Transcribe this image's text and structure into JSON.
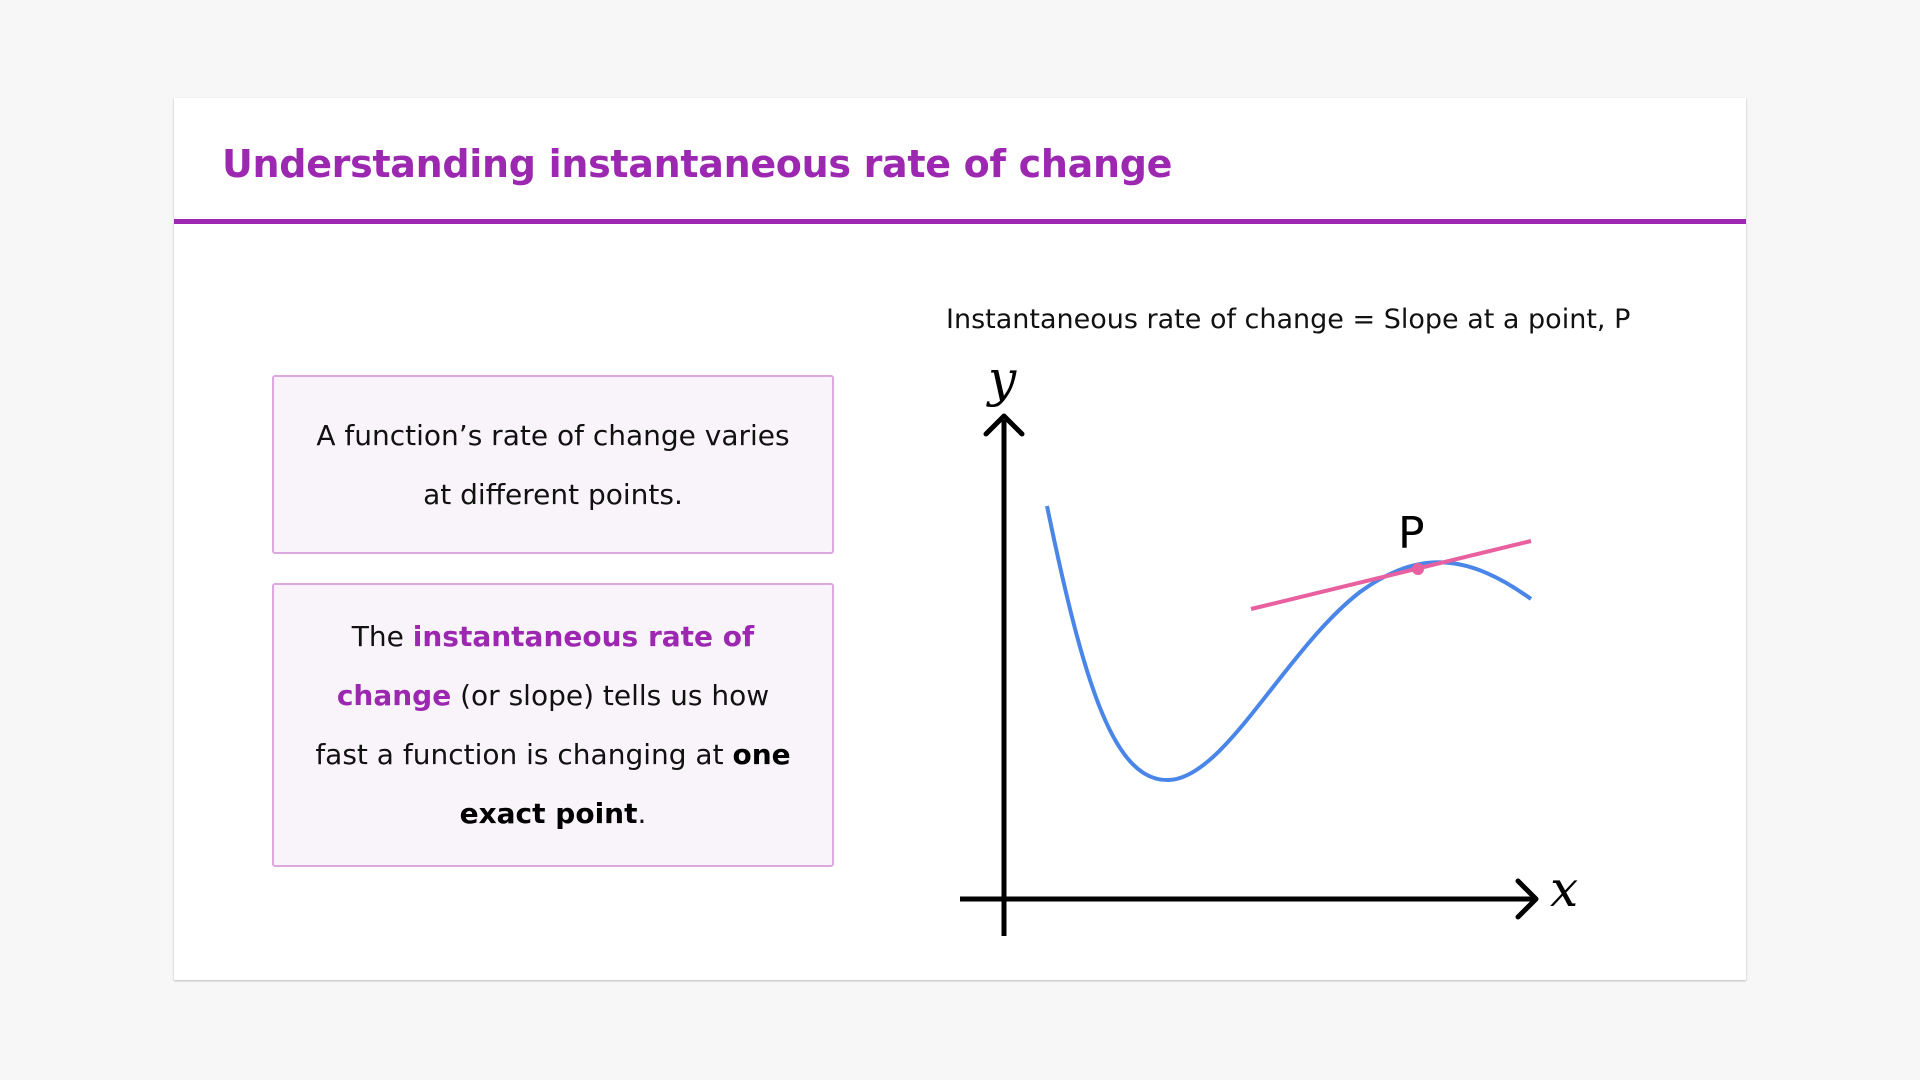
{
  "slide": {
    "title": "Understanding instantaneous rate of change",
    "accent_color": "#9c27b0"
  },
  "box1": {
    "text": "A function’s rate of change varies at different points."
  },
  "box2": {
    "part1": "The ",
    "highlight": "instantaneous rate of change",
    "part2": " (or slope) tells us how fast a function is changing at ",
    "bold": "one exact point",
    "part3": "."
  },
  "diagram": {
    "caption": "Instantaneous rate of change = Slope at a point, P",
    "y_axis_label": "y",
    "x_axis_label": "x",
    "point_label": "P",
    "curve_color": "#4a86e8",
    "tangent_color": "#e8609f"
  }
}
